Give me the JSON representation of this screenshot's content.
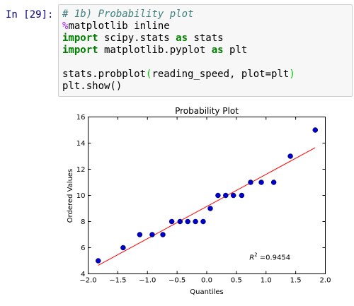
{
  "cell": {
    "prompt": "In [29]:",
    "code": {
      "line1": "# 1b) Probability plot",
      "line2_magic": "%",
      "line2_rest": "matplotlib inline",
      "line3_kw1": "import",
      "line3_mod": " scipy.stats ",
      "line3_kw2": "as",
      "line3_alias": " stats",
      "line4_kw1": "import",
      "line4_mod": " matplotlib.pyplot ",
      "line4_kw2": "as",
      "line4_alias": " plt",
      "line6_a": "stats.probplot",
      "line6_open": "(",
      "line6_b": "reading_speed, plot=plt",
      "line6_close": ")",
      "line7": "plt.show()"
    }
  },
  "chart_data": {
    "type": "scatter",
    "title": "Probability Plot",
    "xlabel": "Quantiles",
    "ylabel": "Ordered Values",
    "xlim": [
      -2.0,
      2.0
    ],
    "ylim": [
      4,
      16
    ],
    "xticks": [
      "−2.0",
      "−1.5",
      "−1.0",
      "−0.5",
      "0.0",
      "0.5",
      "1.0",
      "1.5",
      "2.0"
    ],
    "xtick_values": [
      -2.0,
      -1.5,
      -1.0,
      -0.5,
      0.0,
      0.5,
      1.0,
      1.5,
      2.0
    ],
    "yticks": [
      "4",
      "6",
      "8",
      "10",
      "12",
      "14",
      "16"
    ],
    "ytick_values": [
      4,
      6,
      8,
      10,
      12,
      14,
      16
    ],
    "points": {
      "x": [
        -1.83,
        -1.41,
        -1.13,
        -0.92,
        -0.74,
        -0.59,
        -0.45,
        -0.32,
        -0.19,
        -0.06,
        0.06,
        0.19,
        0.32,
        0.45,
        0.59,
        0.74,
        0.92,
        1.13,
        1.41,
        1.83
      ],
      "y": [
        5,
        6,
        7,
        7,
        7,
        8,
        8,
        8,
        8,
        8,
        9,
        10,
        10,
        10,
        10,
        11,
        11,
        11,
        13,
        15
      ]
    },
    "fit_line": {
      "x": [
        -1.83,
        1.83
      ],
      "y": [
        4.65,
        13.65
      ]
    },
    "annotation_prefix": "R",
    "annotation_sup": "2",
    "annotation_value": "=0.9454",
    "annotation_at": {
      "x": 0.72,
      "y": 5.25
    },
    "marker_color": "#0000cc",
    "line_color": "#ff0000",
    "grid": false,
    "legend": "none"
  }
}
